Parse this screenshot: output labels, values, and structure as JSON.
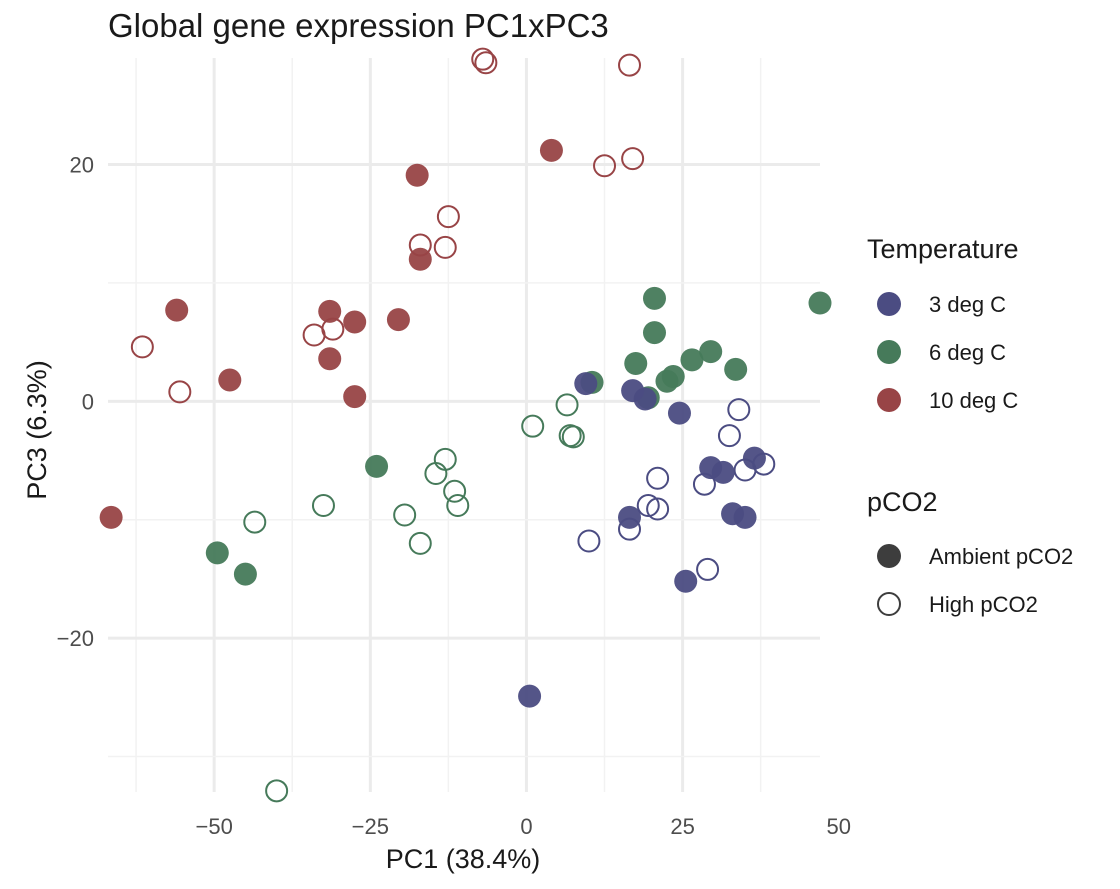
{
  "chart_data": {
    "type": "scatter",
    "title": "Global gene expression PC1xPC3",
    "xlabel": "PC1 (38.4%)",
    "ylabel": "PC3 (6.3%)",
    "xlim": [
      -67,
      47
    ],
    "ylim": [
      -33,
      29
    ],
    "x_ticks": [
      -50,
      -25,
      0,
      25,
      50
    ],
    "y_ticks": [
      -20,
      0,
      20
    ],
    "x_tick_labels": [
      "−50",
      "−25",
      "0",
      "25",
      "50"
    ],
    "y_tick_labels": [
      "−20",
      "0",
      "20"
    ],
    "grid": true,
    "legend_position": "right",
    "legend": {
      "color_title": "Temperature",
      "fill_title": "pCO2",
      "temperature": [
        {
          "key": "3",
          "label": "3 deg C",
          "color": "#4b4c82"
        },
        {
          "key": "6",
          "label": "6 deg C",
          "color": "#467a5a"
        },
        {
          "key": "10",
          "label": "10 deg C",
          "color": "#984446"
        }
      ],
      "pco2": [
        {
          "key": "ambient",
          "label": "Ambient pCO2",
          "filled": true
        },
        {
          "key": "high",
          "label": "High pCO2",
          "filled": false
        }
      ]
    },
    "points": [
      {
        "x": -66.5,
        "y": -9.8,
        "temp": "10",
        "pco2": "ambient"
      },
      {
        "x": -56.0,
        "y": 7.7,
        "temp": "10",
        "pco2": "ambient"
      },
      {
        "x": -47.5,
        "y": 1.8,
        "temp": "10",
        "pco2": "ambient"
      },
      {
        "x": -31.5,
        "y": 7.6,
        "temp": "10",
        "pco2": "ambient"
      },
      {
        "x": -31.5,
        "y": 3.6,
        "temp": "10",
        "pco2": "ambient"
      },
      {
        "x": -27.5,
        "y": 6.7,
        "temp": "10",
        "pco2": "ambient"
      },
      {
        "x": -27.5,
        "y": 0.4,
        "temp": "10",
        "pco2": "ambient"
      },
      {
        "x": -20.5,
        "y": 6.9,
        "temp": "10",
        "pco2": "ambient"
      },
      {
        "x": -17.5,
        "y": 19.1,
        "temp": "10",
        "pco2": "ambient"
      },
      {
        "x": -17.0,
        "y": 12.0,
        "temp": "10",
        "pco2": "ambient"
      },
      {
        "x": 4.0,
        "y": 21.2,
        "temp": "10",
        "pco2": "ambient"
      },
      {
        "x": -61.5,
        "y": 4.6,
        "temp": "10",
        "pco2": "high"
      },
      {
        "x": -55.5,
        "y": 0.8,
        "temp": "10",
        "pco2": "high"
      },
      {
        "x": -34.0,
        "y": 5.6,
        "temp": "10",
        "pco2": "high"
      },
      {
        "x": -31.0,
        "y": 6.1,
        "temp": "10",
        "pco2": "high"
      },
      {
        "x": -17.0,
        "y": 13.2,
        "temp": "10",
        "pco2": "high"
      },
      {
        "x": -13.0,
        "y": 13.0,
        "temp": "10",
        "pco2": "high"
      },
      {
        "x": -12.5,
        "y": 15.6,
        "temp": "10",
        "pco2": "high"
      },
      {
        "x": -7.0,
        "y": 28.9,
        "temp": "10",
        "pco2": "high"
      },
      {
        "x": -6.5,
        "y": 28.6,
        "temp": "10",
        "pco2": "high"
      },
      {
        "x": 12.5,
        "y": 19.9,
        "temp": "10",
        "pco2": "high"
      },
      {
        "x": 16.5,
        "y": 28.4,
        "temp": "10",
        "pco2": "high"
      },
      {
        "x": 17.0,
        "y": 20.5,
        "temp": "10",
        "pco2": "high"
      },
      {
        "x": -49.5,
        "y": -12.8,
        "temp": "6",
        "pco2": "ambient"
      },
      {
        "x": -45.0,
        "y": -14.6,
        "temp": "6",
        "pco2": "ambient"
      },
      {
        "x": -24.0,
        "y": -5.5,
        "temp": "6",
        "pco2": "ambient"
      },
      {
        "x": 10.5,
        "y": 1.6,
        "temp": "6",
        "pco2": "ambient"
      },
      {
        "x": 17.5,
        "y": 3.2,
        "temp": "6",
        "pco2": "ambient"
      },
      {
        "x": 19.5,
        "y": 0.3,
        "temp": "6",
        "pco2": "ambient"
      },
      {
        "x": 20.5,
        "y": 8.7,
        "temp": "6",
        "pco2": "ambient"
      },
      {
        "x": 20.5,
        "y": 5.8,
        "temp": "6",
        "pco2": "ambient"
      },
      {
        "x": 22.5,
        "y": 1.7,
        "temp": "6",
        "pco2": "ambient"
      },
      {
        "x": 23.5,
        "y": 2.1,
        "temp": "6",
        "pco2": "ambient"
      },
      {
        "x": 26.5,
        "y": 3.5,
        "temp": "6",
        "pco2": "ambient"
      },
      {
        "x": 29.5,
        "y": 4.2,
        "temp": "6",
        "pco2": "ambient"
      },
      {
        "x": 33.5,
        "y": 2.7,
        "temp": "6",
        "pco2": "ambient"
      },
      {
        "x": 47.0,
        "y": 8.3,
        "temp": "6",
        "pco2": "ambient"
      },
      {
        "x": -40.0,
        "y": -32.9,
        "temp": "6",
        "pco2": "high"
      },
      {
        "x": -43.5,
        "y": -10.2,
        "temp": "6",
        "pco2": "high"
      },
      {
        "x": -32.5,
        "y": -8.8,
        "temp": "6",
        "pco2": "high"
      },
      {
        "x": -19.5,
        "y": -9.6,
        "temp": "6",
        "pco2": "high"
      },
      {
        "x": -17.0,
        "y": -12.0,
        "temp": "6",
        "pco2": "high"
      },
      {
        "x": -14.5,
        "y": -6.1,
        "temp": "6",
        "pco2": "high"
      },
      {
        "x": -13.0,
        "y": -4.9,
        "temp": "6",
        "pco2": "high"
      },
      {
        "x": -11.5,
        "y": -7.6,
        "temp": "6",
        "pco2": "high"
      },
      {
        "x": -11.0,
        "y": -8.8,
        "temp": "6",
        "pco2": "high"
      },
      {
        "x": 1.0,
        "y": -2.1,
        "temp": "6",
        "pco2": "high"
      },
      {
        "x": 6.5,
        "y": -0.3,
        "temp": "6",
        "pco2": "high"
      },
      {
        "x": 7.0,
        "y": -2.9,
        "temp": "6",
        "pco2": "high"
      },
      {
        "x": 7.5,
        "y": -3.0,
        "temp": "6",
        "pco2": "high"
      },
      {
        "x": 0.5,
        "y": -24.9,
        "temp": "3",
        "pco2": "ambient"
      },
      {
        "x": 9.5,
        "y": 1.5,
        "temp": "3",
        "pco2": "ambient"
      },
      {
        "x": 16.5,
        "y": -9.8,
        "temp": "3",
        "pco2": "ambient"
      },
      {
        "x": 17.0,
        "y": 0.9,
        "temp": "3",
        "pco2": "ambient"
      },
      {
        "x": 19.0,
        "y": 0.2,
        "temp": "3",
        "pco2": "ambient"
      },
      {
        "x": 24.5,
        "y": -1.0,
        "temp": "3",
        "pco2": "ambient"
      },
      {
        "x": 25.5,
        "y": -15.2,
        "temp": "3",
        "pco2": "ambient"
      },
      {
        "x": 29.5,
        "y": -5.6,
        "temp": "3",
        "pco2": "ambient"
      },
      {
        "x": 31.5,
        "y": -6.0,
        "temp": "3",
        "pco2": "ambient"
      },
      {
        "x": 33.0,
        "y": -9.5,
        "temp": "3",
        "pco2": "ambient"
      },
      {
        "x": 35.0,
        "y": -9.8,
        "temp": "3",
        "pco2": "ambient"
      },
      {
        "x": 36.5,
        "y": -4.8,
        "temp": "3",
        "pco2": "ambient"
      },
      {
        "x": 10.0,
        "y": -11.8,
        "temp": "3",
        "pco2": "high"
      },
      {
        "x": 16.5,
        "y": -10.8,
        "temp": "3",
        "pco2": "high"
      },
      {
        "x": 19.5,
        "y": -8.8,
        "temp": "3",
        "pco2": "high"
      },
      {
        "x": 21.0,
        "y": -6.5,
        "temp": "3",
        "pco2": "high"
      },
      {
        "x": 21.0,
        "y": -9.1,
        "temp": "3",
        "pco2": "high"
      },
      {
        "x": 28.5,
        "y": -7.0,
        "temp": "3",
        "pco2": "high"
      },
      {
        "x": 29.0,
        "y": -14.2,
        "temp": "3",
        "pco2": "high"
      },
      {
        "x": 32.5,
        "y": -2.9,
        "temp": "3",
        "pco2": "high"
      },
      {
        "x": 34.0,
        "y": -0.7,
        "temp": "3",
        "pco2": "high"
      },
      {
        "x": 35.0,
        "y": -5.8,
        "temp": "3",
        "pco2": "high"
      },
      {
        "x": 38.0,
        "y": -5.3,
        "temp": "3",
        "pco2": "high"
      }
    ]
  }
}
